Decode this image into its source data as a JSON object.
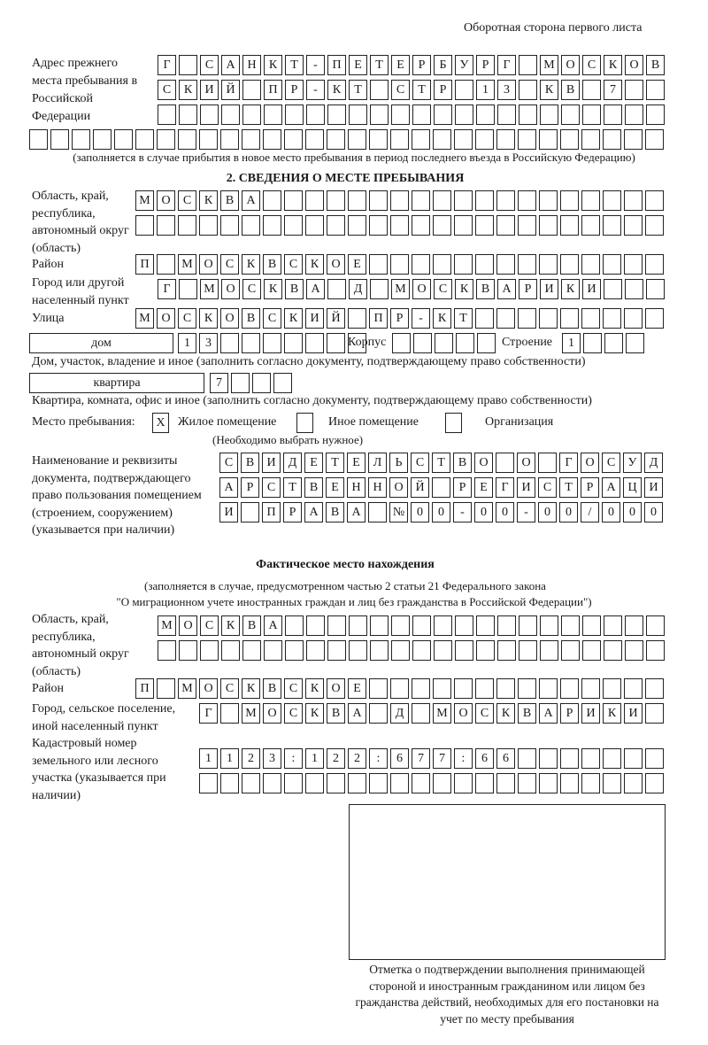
{
  "header": "Оборотная сторона первого листа",
  "prev_address": {
    "label": "Адрес прежнего места пребывания в Российской Федерации",
    "rows": [
      [
        "Г",
        "",
        "С",
        "А",
        "Н",
        "К",
        "Т",
        "-",
        "П",
        "Е",
        "Т",
        "Е",
        "Р",
        "Б",
        "У",
        "Р",
        "Г",
        "",
        "М",
        "О",
        "С",
        "К",
        "О",
        "В"
      ],
      [
        "С",
        "К",
        "И",
        "Й",
        "",
        "П",
        "Р",
        "-",
        "К",
        "Т",
        "",
        "С",
        "Т",
        "Р",
        "",
        "1",
        "3",
        "",
        "К",
        "В",
        "",
        "7",
        "",
        ""
      ],
      [
        "",
        "",
        "",
        "",
        "",
        "",
        "",
        "",
        "",
        "",
        "",
        "",
        "",
        "",
        "",
        "",
        "",
        "",
        "",
        "",
        "",
        "",
        "",
        ""
      ],
      [
        "",
        "",
        "",
        "",
        "",
        "",
        "",
        "",
        "",
        "",
        "",
        "",
        "",
        "",
        "",
        "",
        "",
        "",
        "",
        "",
        "",
        "",
        "",
        "",
        "",
        "",
        "",
        "",
        "",
        ""
      ]
    ],
    "note": "(заполняется в случае прибытия в новое место пребывания в период последнего въезда в Российскую Федерацию)"
  },
  "section2": {
    "title": "2. СВЕДЕНИЯ О МЕСТЕ ПРЕБЫВАНИЯ",
    "region_label": "Область, край, республика, автономный округ (область)",
    "region_rows": [
      [
        "М",
        "О",
        "С",
        "К",
        "В",
        "А",
        "",
        "",
        "",
        "",
        "",
        "",
        "",
        "",
        "",
        "",
        "",
        "",
        "",
        "",
        "",
        "",
        "",
        "",
        ""
      ],
      [
        "",
        "",
        "",
        "",
        "",
        "",
        "",
        "",
        "",
        "",
        "",
        "",
        "",
        "",
        "",
        "",
        "",
        "",
        "",
        "",
        "",
        "",
        "",
        "",
        ""
      ]
    ],
    "district_label": "Район",
    "district": [
      "П",
      "",
      "М",
      "О",
      "С",
      "К",
      "В",
      "С",
      "К",
      "О",
      "Е",
      "",
      "",
      "",
      "",
      "",
      "",
      "",
      "",
      "",
      "",
      "",
      "",
      "",
      ""
    ],
    "city_label": "Город или другой населенный пункт",
    "city": [
      "Г",
      "",
      "М",
      "О",
      "С",
      "К",
      "В",
      "А",
      "",
      "Д",
      "",
      "М",
      "О",
      "С",
      "К",
      "В",
      "А",
      "Р",
      "И",
      "К",
      "И",
      "",
      "",
      ""
    ],
    "street_label": "Улица",
    "street": [
      "М",
      "О",
      "С",
      "К",
      "О",
      "В",
      "С",
      "К",
      "И",
      "Й",
      "",
      "П",
      "Р",
      "-",
      "К",
      "Т",
      "",
      "",
      "",
      "",
      "",
      "",
      "",
      "",
      ""
    ],
    "house_type": "дом",
    "house": [
      "1",
      "3",
      "",
      "",
      "",
      "",
      "",
      "",
      ""
    ],
    "korpus_label": "Корпус",
    "korpus": [
      "",
      "",
      "",
      "",
      ""
    ],
    "building_label": "Строение",
    "building": [
      "1",
      "",
      "",
      ""
    ],
    "house_note": "Дом, участок, владение и иное (заполнить согласно документу, подтверждающему право собственности)",
    "apt_type": "квартира",
    "apt": [
      "7",
      "",
      "",
      ""
    ],
    "apt_note": "Квартира, комната, офис и иное (заполнить согласно документу, подтверждающему право собственности)",
    "stay_label": "Место пребывания:",
    "options": [
      {
        "mark": "X",
        "label": "Жилое помещение"
      },
      {
        "mark": "",
        "label": "Иное помещение"
      },
      {
        "mark": "",
        "label": "Организация"
      }
    ],
    "choose_note": "(Необходимо выбрать нужное)",
    "doc_label": "Наименование и реквизиты документа, подтверждающего право пользования помещением (строением, сооружением) (указывается при наличии)",
    "doc_rows": [
      [
        "С",
        "В",
        "И",
        "Д",
        "Е",
        "Т",
        "Е",
        "Л",
        "Ь",
        "С",
        "Т",
        "В",
        "О",
        "",
        "О",
        "",
        "Г",
        "О",
        "С",
        "У",
        "Д"
      ],
      [
        "А",
        "Р",
        "С",
        "Т",
        "В",
        "Е",
        "Н",
        "Н",
        "О",
        "Й",
        "",
        "Р",
        "Е",
        "Г",
        "И",
        "С",
        "Т",
        "Р",
        "А",
        "Ц",
        "И"
      ],
      [
        "И",
        "",
        "П",
        "Р",
        "А",
        "В",
        "А",
        "",
        "№",
        "0",
        "0",
        "-",
        "0",
        "0",
        "-",
        "0",
        "0",
        "/",
        "0",
        "0",
        "0"
      ]
    ]
  },
  "actual": {
    "title": "Фактическое место нахождения",
    "note1": "(заполняется в случае, предусмотренном частью 2 статьи 21 Федерального закона",
    "note2": "\"О миграционном учете иностранных граждан и лиц без гражданства в Российской Федерации\")",
    "region_label": "Область, край, республика, автономный округ (область)",
    "region_rows": [
      [
        "М",
        "О",
        "С",
        "К",
        "В",
        "А",
        "",
        "",
        "",
        "",
        "",
        "",
        "",
        "",
        "",
        "",
        "",
        "",
        "",
        "",
        "",
        "",
        "",
        ""
      ],
      [
        "",
        "",
        "",
        "",
        "",
        "",
        "",
        "",
        "",
        "",
        "",
        "",
        "",
        "",
        "",
        "",
        "",
        "",
        "",
        "",
        "",
        "",
        "",
        ""
      ]
    ],
    "district_label": "Район",
    "district": [
      "П",
      "",
      "М",
      "О",
      "С",
      "К",
      "В",
      "С",
      "К",
      "О",
      "Е",
      "",
      "",
      "",
      "",
      "",
      "",
      "",
      "",
      "",
      "",
      "",
      "",
      "",
      ""
    ],
    "city_label": "Город, сельское поселение, иной населенный пункт",
    "city": [
      "Г",
      "",
      "М",
      "О",
      "С",
      "К",
      "В",
      "А",
      "",
      "Д",
      "",
      "М",
      "О",
      "С",
      "К",
      "В",
      "А",
      "Р",
      "И",
      "К",
      "И",
      ""
    ],
    "cadastre_label": "Кадастровый номер земельного или лесного участка (указывается при наличии)",
    "cadastre_rows": [
      [
        "1",
        "1",
        "2",
        "3",
        ":",
        "1",
        "2",
        "2",
        ":",
        "6",
        "7",
        "7",
        ":",
        "6",
        "6",
        "",
        "",
        "",
        "",
        "",
        "",
        ""
      ],
      [
        "",
        "",
        "",
        "",
        "",
        "",
        "",
        "",
        "",
        "",
        "",
        "",
        "",
        "",
        "",
        "",
        "",
        "",
        "",
        "",
        "",
        ""
      ]
    ]
  },
  "stamp_caption": "Отметка о подтверждении выполнения принимающей стороной и иностранным гражданином или лицом без гражданства действий, необходимых для его постановки на учет по месту пребывания"
}
